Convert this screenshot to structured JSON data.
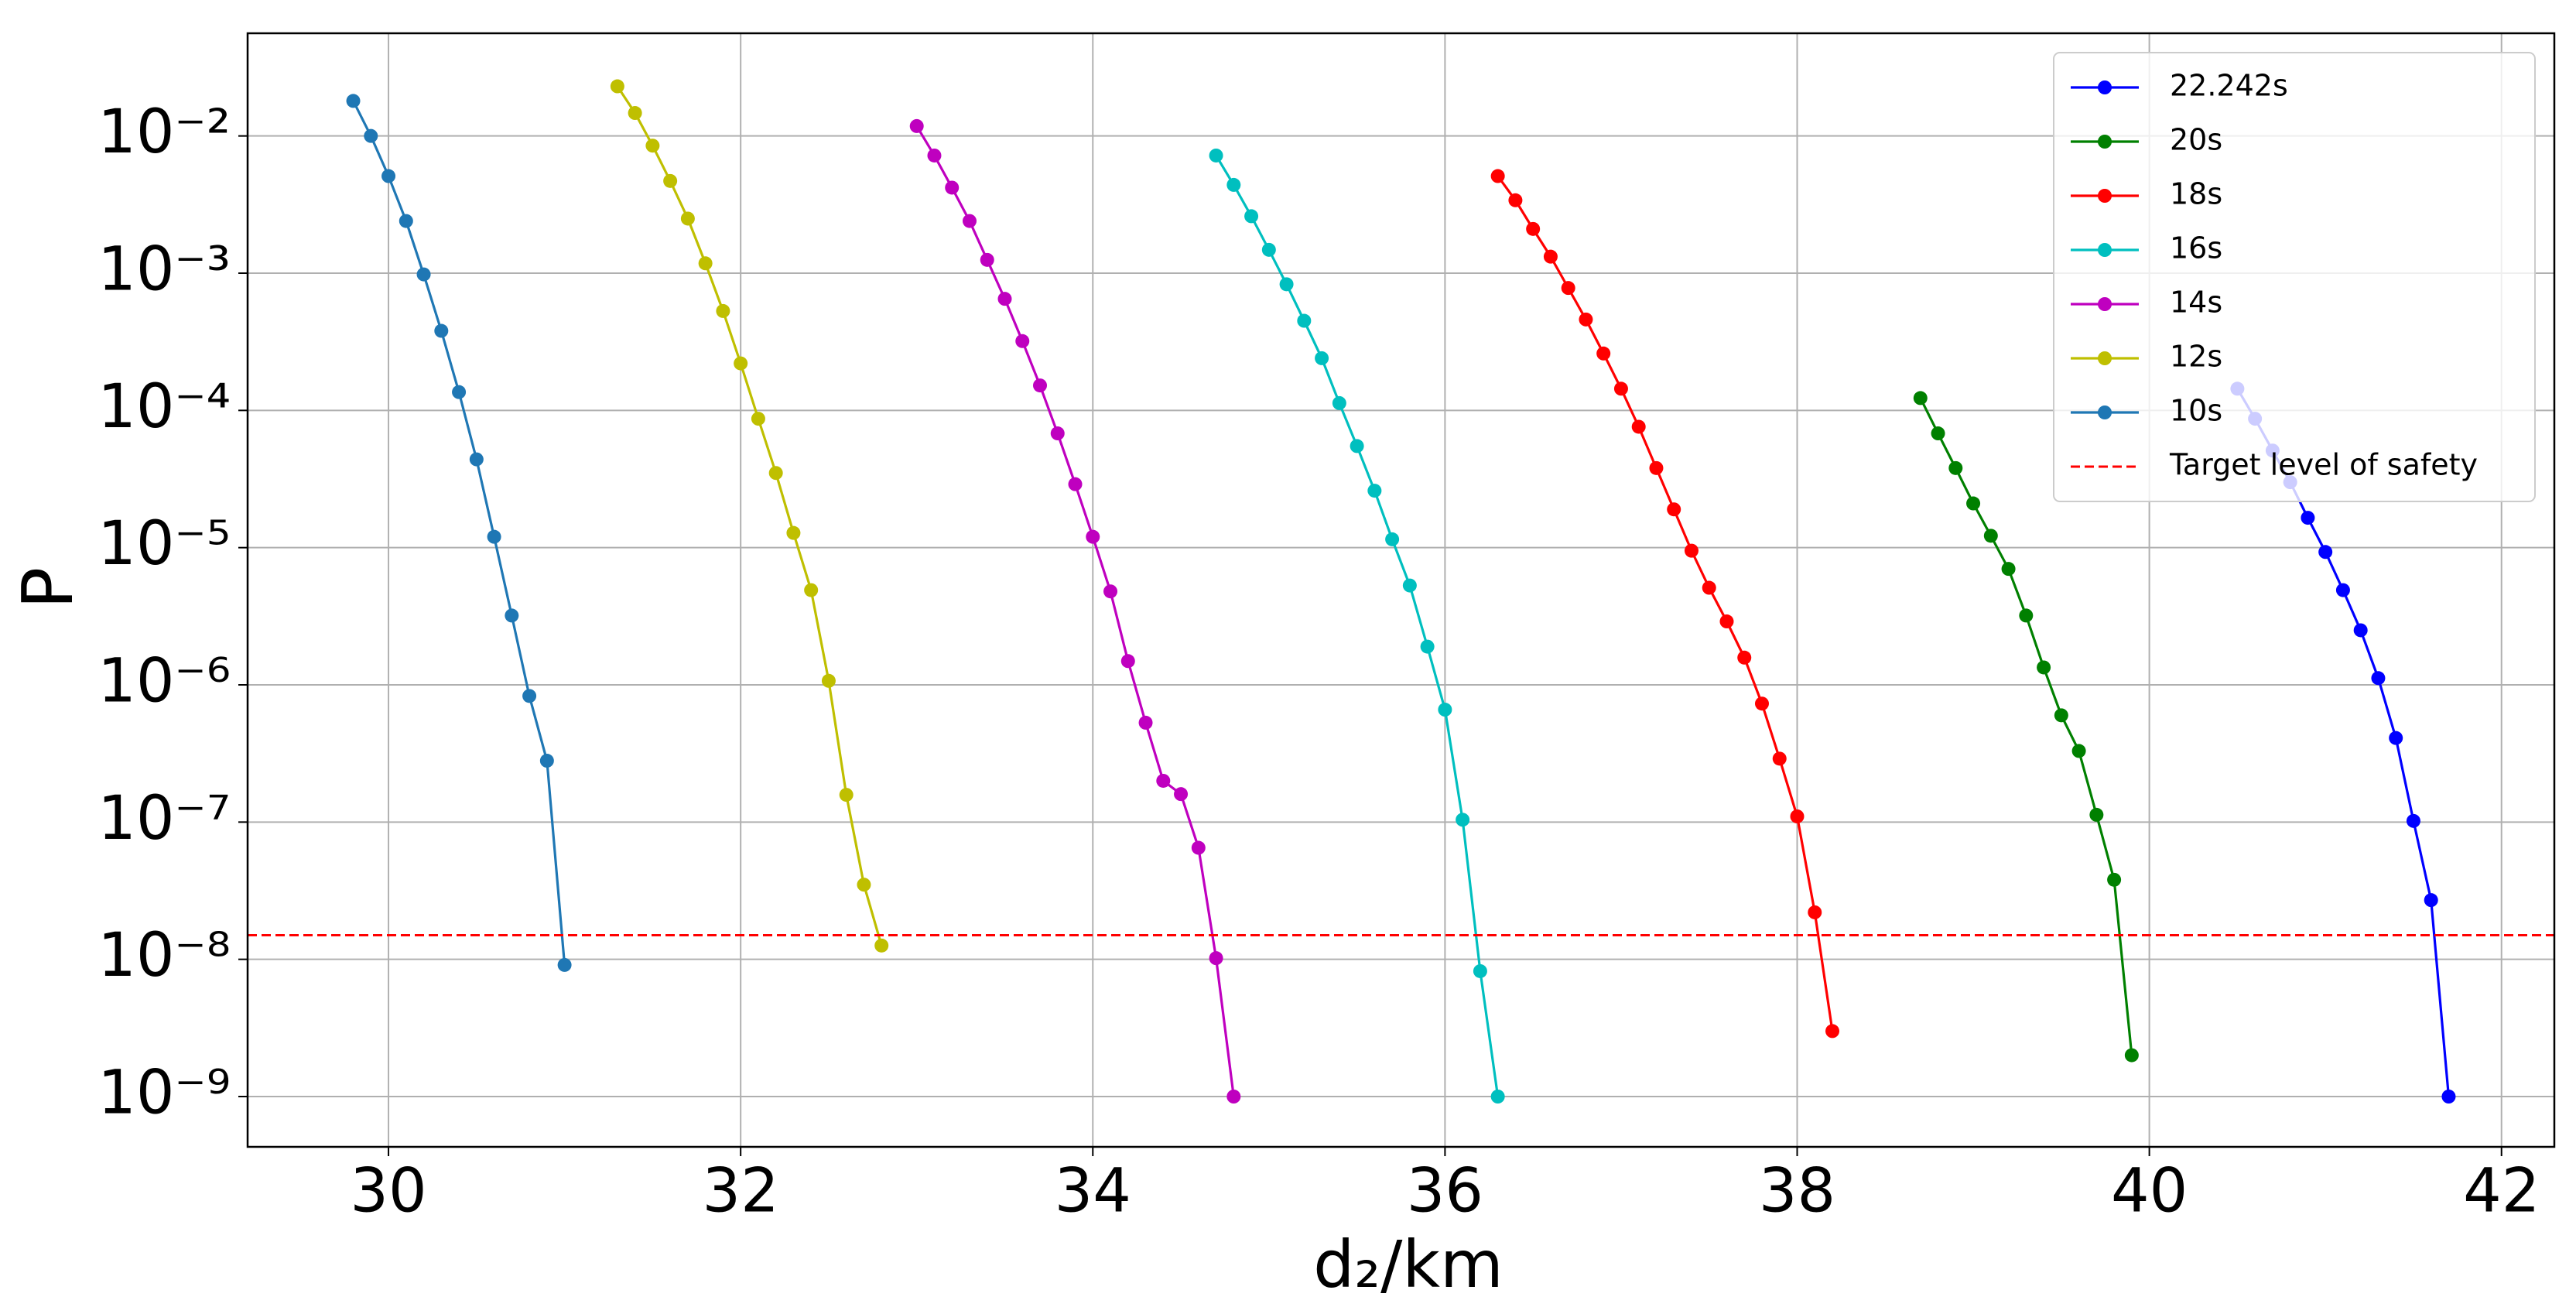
{
  "chart_data": {
    "type": "line",
    "xlabel": "d₂/km",
    "ylabel": "P",
    "yscale": "log",
    "grid": true,
    "legend_position": "upper right",
    "xlim": [
      29.2,
      42.3
    ],
    "xticks": [
      30,
      32,
      34,
      36,
      38,
      40,
      42
    ],
    "ylim": [
      4.3e-10,
      0.056
    ],
    "yticks": [
      {
        "value": 0.01,
        "label": "10⁻²"
      },
      {
        "value": 0.001,
        "label": "10⁻³"
      },
      {
        "value": 0.0001,
        "label": "10⁻⁴"
      },
      {
        "value": 1e-05,
        "label": "10⁻⁵"
      },
      {
        "value": 1e-06,
        "label": "10⁻⁶"
      },
      {
        "value": 1e-07,
        "label": "10⁻⁷"
      },
      {
        "value": 1e-08,
        "label": "10⁻⁸"
      },
      {
        "value": 1e-09,
        "label": "10⁻⁹"
      }
    ],
    "series": [
      {
        "name": "22.242s",
        "color": "#0000ff",
        "x": [
          40.5,
          40.6,
          40.7,
          40.8,
          40.9,
          41.0,
          41.1,
          41.2,
          41.3,
          41.4,
          41.5,
          41.6,
          41.7
        ],
        "values": [
          0.000144,
          8.7e-05,
          5.1e-05,
          3e-05,
          1.65e-05,
          9.3e-06,
          4.9e-06,
          2.5e-06,
          1.12e-06,
          4.1e-07,
          1.02e-07,
          2.7e-08,
          1e-09
        ]
      },
      {
        "name": "20s",
        "color": "#008000",
        "x": [
          38.7,
          38.8,
          38.9,
          39.0,
          39.1,
          39.2,
          39.3,
          39.4,
          39.5,
          39.6,
          39.7,
          39.8,
          39.9
        ],
        "values": [
          0.000123,
          6.8e-05,
          3.8e-05,
          2.1e-05,
          1.22e-05,
          7e-06,
          3.2e-06,
          1.34e-06,
          6e-07,
          3.3e-07,
          1.13e-07,
          3.8e-08,
          2e-09
        ]
      },
      {
        "name": "18s",
        "color": "#ff0000",
        "x": [
          36.3,
          36.4,
          36.5,
          36.6,
          36.7,
          36.8,
          36.9,
          37.0,
          37.1,
          37.2,
          37.3,
          37.4,
          37.5,
          37.6,
          37.7,
          37.8,
          37.9,
          38.0,
          38.1,
          38.2
        ],
        "values": [
          0.0051,
          0.0034,
          0.0021,
          0.00132,
          0.00078,
          0.00046,
          0.00026,
          0.000144,
          7.6e-05,
          3.8e-05,
          1.9e-05,
          9.5e-06,
          5.1e-06,
          2.9e-06,
          1.58e-06,
          7.3e-07,
          2.9e-07,
          1.1e-07,
          2.2e-08,
          3e-09
        ]
      },
      {
        "name": "16s",
        "color": "#00bfbf",
        "x": [
          34.7,
          34.8,
          34.9,
          35.0,
          35.1,
          35.2,
          35.3,
          35.4,
          35.5,
          35.6,
          35.7,
          35.8,
          35.9,
          36.0,
          36.1,
          36.2,
          36.3
        ],
        "values": [
          0.0072,
          0.0044,
          0.0026,
          0.00148,
          0.00083,
          0.00045,
          0.00024,
          0.000113,
          5.5e-05,
          2.6e-05,
          1.15e-05,
          5.3e-06,
          1.9e-06,
          6.6e-07,
          1.04e-07,
          8.2e-09,
          1e-09
        ]
      },
      {
        "name": "14s",
        "color": "#bf00bf",
        "x": [
          33.0,
          33.1,
          33.2,
          33.3,
          33.4,
          33.5,
          33.6,
          33.7,
          33.8,
          33.9,
          34.0,
          34.1,
          34.2,
          34.3,
          34.4,
          34.5,
          34.6,
          34.7,
          34.8
        ],
        "values": [
          0.0118,
          0.0072,
          0.0042,
          0.0024,
          0.00125,
          0.00065,
          0.00032,
          0.000152,
          6.8e-05,
          2.9e-05,
          1.2e-05,
          4.8e-06,
          1.49e-06,
          5.3e-07,
          2e-07,
          1.6e-07,
          6.5e-08,
          1.02e-08,
          1e-09
        ]
      },
      {
        "name": "12s",
        "color": "#bfbf00",
        "x": [
          31.3,
          31.4,
          31.5,
          31.6,
          31.7,
          31.8,
          31.9,
          32.0,
          32.1,
          32.2,
          32.3,
          32.4,
          32.5,
          32.6,
          32.7,
          32.8
        ],
        "values": [
          0.023,
          0.0147,
          0.0085,
          0.0047,
          0.0025,
          0.00118,
          0.00053,
          0.00022,
          8.7e-05,
          3.5e-05,
          1.28e-05,
          4.9e-06,
          1.07e-06,
          1.58e-07,
          3.5e-08,
          1.26e-08
        ]
      },
      {
        "name": "10s",
        "color": "#1f77b4",
        "x": [
          29.8,
          29.9,
          30.0,
          30.1,
          30.2,
          30.3,
          30.4,
          30.5,
          30.6,
          30.7,
          30.8,
          30.9,
          31.0
        ],
        "values": [
          0.018,
          0.01,
          0.0051,
          0.0024,
          0.00098,
          0.00038,
          0.000136,
          4.4e-05,
          1.2e-05,
          3.2e-06,
          8.3e-07,
          2.8e-07,
          9.1e-09
        ]
      }
    ],
    "reference_line": {
      "name": "Target level of safety",
      "value": 1.5e-08,
      "color": "#ff0000"
    }
  }
}
